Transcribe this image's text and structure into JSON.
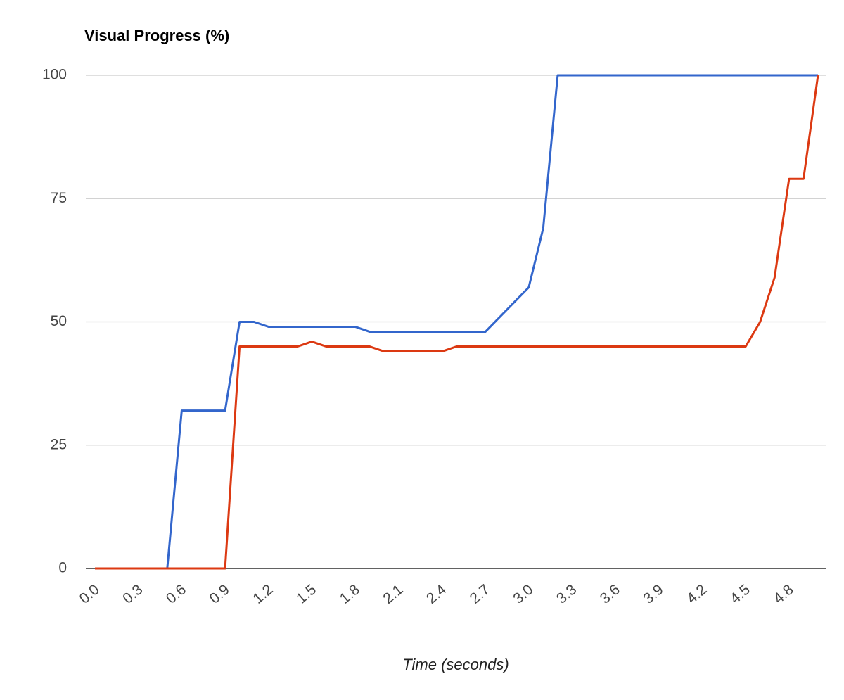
{
  "chart_data": {
    "type": "line",
    "title": "Visual Progress (%)",
    "x_label": "Time (seconds)",
    "x": [
      0,
      0.1,
      0.2,
      0.3,
      0.4,
      0.5,
      0.6,
      0.7,
      0.8,
      0.9,
      1.0,
      1.1,
      1.2,
      1.3,
      1.4,
      1.5,
      1.6,
      1.7,
      1.8,
      1.9,
      2.0,
      2.1,
      2.2,
      2.3,
      2.4,
      2.5,
      2.6,
      2.7,
      2.8,
      2.9,
      3.0,
      3.1,
      3.2,
      3.3,
      3.4,
      3.5,
      3.6,
      3.7,
      3.8,
      3.9,
      4.0,
      4.1,
      4.2,
      4.3,
      4.4,
      4.5,
      4.6,
      4.7,
      4.8,
      4.9,
      5.0
    ],
    "series": [
      {
        "color": "#3366cc",
        "values": [
          0,
          0,
          0,
          0,
          0,
          0,
          32,
          32,
          32,
          32,
          50,
          50,
          49,
          49,
          49,
          49,
          49,
          49,
          49,
          48,
          48,
          48,
          48,
          48,
          48,
          48,
          48,
          48,
          51,
          54,
          57,
          69,
          100,
          100,
          100,
          100,
          100,
          100,
          100,
          100,
          100,
          100,
          100,
          100,
          100,
          100,
          100,
          100,
          100,
          100,
          100
        ]
      },
      {
        "color": "#dc3912",
        "values": [
          0,
          0,
          0,
          0,
          0,
          0,
          0,
          0,
          0,
          0,
          45,
          45,
          45,
          45,
          45,
          46,
          45,
          45,
          45,
          45,
          44,
          44,
          44,
          44,
          44,
          45,
          45,
          45,
          45,
          45,
          45,
          45,
          45,
          45,
          45,
          45,
          45,
          45,
          45,
          45,
          45,
          45,
          45,
          45,
          45,
          45,
          50,
          59,
          79,
          79,
          100
        ]
      }
    ],
    "xlim": [
      0,
      5
    ],
    "xticks": [
      {
        "value": 0,
        "label": "0.0"
      },
      0.3,
      0.6,
      0.9,
      1.2,
      1.5,
      1.8,
      2.1,
      2.4,
      2.7,
      {
        "value": 3,
        "label": "3.0"
      },
      3.3,
      3.6,
      3.9,
      4.2,
      4.5,
      4.8
    ],
    "ylim": [
      0,
      100
    ],
    "yticks": [
      0,
      25,
      50,
      75,
      100
    ],
    "grid": true
  }
}
